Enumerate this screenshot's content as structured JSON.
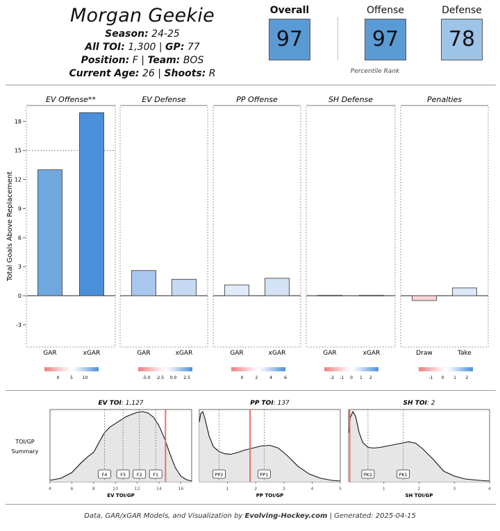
{
  "player": {
    "name": "Morgan Geekie",
    "season_label": "Season",
    "season": "24-25",
    "toi_label": "All TOI",
    "toi": "1,300",
    "gp_label": "GP",
    "gp": "77",
    "position_label": "Position",
    "position": "F",
    "team_label": "Team",
    "team": "BOS",
    "age_label": "Current Age",
    "age": "26",
    "shoots_label": "Shoots",
    "shoots": "R"
  },
  "ranks": {
    "overall_label": "Overall",
    "overall": "97",
    "offense_label": "Offense",
    "offense": "97",
    "defense_label": "Defense",
    "defense": "78",
    "caption": "Percentile Rank"
  },
  "colors": {
    "overall": "#5b9bd5",
    "offense": "#5b9bd5",
    "defense": "#9dc3e6",
    "positive_max": "#4a90d9",
    "negative_max": "#e8555a",
    "density_fill": "#e6e6e6",
    "player_line": "#e8706a"
  },
  "chart_data": [
    {
      "type": "bar",
      "ylabel": "Total Goals Above Replacement",
      "ylim": [
        -5,
        20
      ],
      "yticks": [
        -3,
        0,
        3,
        6,
        9,
        12,
        15,
        18
      ],
      "reference_line": 15,
      "panels": [
        {
          "title": "EV Offense**",
          "categories": [
            "GAR",
            "xGAR"
          ],
          "values": [
            13.0,
            18.9
          ],
          "colors": [
            "#6fa8dc",
            "#4a90d9"
          ],
          "legend_ticks": [
            "0",
            "5",
            "10"
          ],
          "legend_range": [
            -5,
            15
          ]
        },
        {
          "title": "EV Defense",
          "categories": [
            "GAR",
            "xGAR"
          ],
          "values": [
            2.6,
            1.7
          ],
          "colors": [
            "#a9c6ec",
            "#c6d9f2"
          ],
          "legend_ticks": [
            "-5.0",
            "-2.5",
            "0.0",
            "2.5"
          ],
          "legend_range": [
            -6.5,
            3.5
          ]
        },
        {
          "title": "PP Offense",
          "categories": [
            "GAR",
            "xGAR"
          ],
          "values": [
            1.1,
            1.8
          ],
          "colors": [
            "#e0eaf8",
            "#d4e2f5"
          ],
          "legend_ticks": [
            "0",
            "2",
            "4",
            "6"
          ],
          "legend_range": [
            -1.5,
            6
          ]
        },
        {
          "title": "SH Defense",
          "categories": [
            "GAR",
            "xGAR"
          ],
          "values": [
            0.05,
            0.05
          ],
          "colors": [
            "#f3f6fb",
            "#f3f6fb"
          ],
          "legend_ticks": [
            "-2",
            "-1",
            "0",
            "1",
            "2"
          ],
          "legend_range": [
            -2.8,
            2.8
          ]
        },
        {
          "title": "Penalties",
          "categories": [
            "Draw",
            "Take"
          ],
          "values": [
            -0.5,
            0.8
          ],
          "colors": [
            "#f9d6d6",
            "#dce7f7"
          ],
          "legend_ticks": [
            "-1",
            "0",
            "1",
            "2"
          ],
          "legend_range": [
            -2,
            2.5
          ]
        }
      ]
    },
    {
      "type": "area",
      "ylabel_lines": [
        "TOI/GP",
        "Summary"
      ],
      "panels": [
        {
          "title_label": "EV TOI",
          "title_value": "1,127",
          "xlabel": "EV TOI/GP",
          "xlim": [
            4,
            17
          ],
          "xticks": [
            4,
            6,
            8,
            10,
            12,
            14,
            16
          ],
          "player_value": 14.6,
          "markers": [
            {
              "label": "F4",
              "x": 9.0
            },
            {
              "label": "F3",
              "x": 10.7
            },
            {
              "label": "F2",
              "x": 12.2
            },
            {
              "label": "F1",
              "x": 13.7
            }
          ],
          "density": [
            [
              4.0,
              0.02
            ],
            [
              5.0,
              0.05
            ],
            [
              6.0,
              0.13
            ],
            [
              6.8,
              0.26
            ],
            [
              7.5,
              0.36
            ],
            [
              8.0,
              0.42
            ],
            [
              8.5,
              0.56
            ],
            [
              9.0,
              0.7
            ],
            [
              9.5,
              0.78
            ],
            [
              10.0,
              0.83
            ],
            [
              10.5,
              0.88
            ],
            [
              11.0,
              0.93
            ],
            [
              11.5,
              0.96
            ],
            [
              12.0,
              0.99
            ],
            [
              12.5,
              1.0
            ],
            [
              13.0,
              0.98
            ],
            [
              13.5,
              0.92
            ],
            [
              14.0,
              0.8
            ],
            [
              14.5,
              0.62
            ],
            [
              15.0,
              0.4
            ],
            [
              15.5,
              0.2
            ],
            [
              16.0,
              0.08
            ],
            [
              16.5,
              0.03
            ],
            [
              17.0,
              0.01
            ]
          ]
        },
        {
          "title_label": "PP TOI",
          "title_value": "137",
          "xlabel": "PP TOI/GP",
          "xlim": [
            0,
            5
          ],
          "xticks": [
            1,
            2,
            3,
            4,
            5
          ],
          "player_value": 1.8,
          "markers": [
            {
              "label": "PP2",
              "x": 0.7
            },
            {
              "label": "PP1",
              "x": 2.3
            }
          ],
          "density": [
            [
              0.0,
              0.85
            ],
            [
              0.05,
              0.97
            ],
            [
              0.12,
              1.0
            ],
            [
              0.2,
              0.9
            ],
            [
              0.35,
              0.65
            ],
            [
              0.5,
              0.5
            ],
            [
              0.7,
              0.43
            ],
            [
              0.9,
              0.4
            ],
            [
              1.1,
              0.39
            ],
            [
              1.3,
              0.41
            ],
            [
              1.6,
              0.45
            ],
            [
              1.9,
              0.48
            ],
            [
              2.2,
              0.51
            ],
            [
              2.5,
              0.52
            ],
            [
              2.8,
              0.48
            ],
            [
              3.1,
              0.38
            ],
            [
              3.5,
              0.22
            ],
            [
              3.9,
              0.11
            ],
            [
              4.3,
              0.05
            ],
            [
              4.7,
              0.02
            ],
            [
              5.0,
              0.01
            ]
          ]
        },
        {
          "title_label": "SH TOI",
          "title_value": "2",
          "xlabel": "SH TOI/GP",
          "xlim": [
            0,
            4
          ],
          "xticks": [
            1,
            2,
            3,
            4
          ],
          "player_value": 0.03,
          "markers": [
            {
              "label": "PK2",
              "x": 0.55
            },
            {
              "label": "PK1",
              "x": 1.55
            }
          ],
          "density": [
            [
              0.0,
              0.7
            ],
            [
              0.05,
              0.92
            ],
            [
              0.12,
              1.0
            ],
            [
              0.2,
              0.93
            ],
            [
              0.3,
              0.7
            ],
            [
              0.4,
              0.56
            ],
            [
              0.55,
              0.49
            ],
            [
              0.7,
              0.48
            ],
            [
              0.9,
              0.49
            ],
            [
              1.1,
              0.51
            ],
            [
              1.3,
              0.53
            ],
            [
              1.5,
              0.55
            ],
            [
              1.7,
              0.57
            ],
            [
              1.9,
              0.55
            ],
            [
              2.1,
              0.47
            ],
            [
              2.4,
              0.32
            ],
            [
              2.7,
              0.15
            ],
            [
              3.0,
              0.08
            ],
            [
              3.3,
              0.04
            ],
            [
              3.7,
              0.02
            ],
            [
              4.0,
              0.01
            ]
          ]
        }
      ]
    }
  ],
  "footer": {
    "prefix": "Data, GAR/xGAR Models, and Visualization by ",
    "brand": "Evolving-Hockey.com",
    "generated": " | Generated: 2025-04-15"
  }
}
